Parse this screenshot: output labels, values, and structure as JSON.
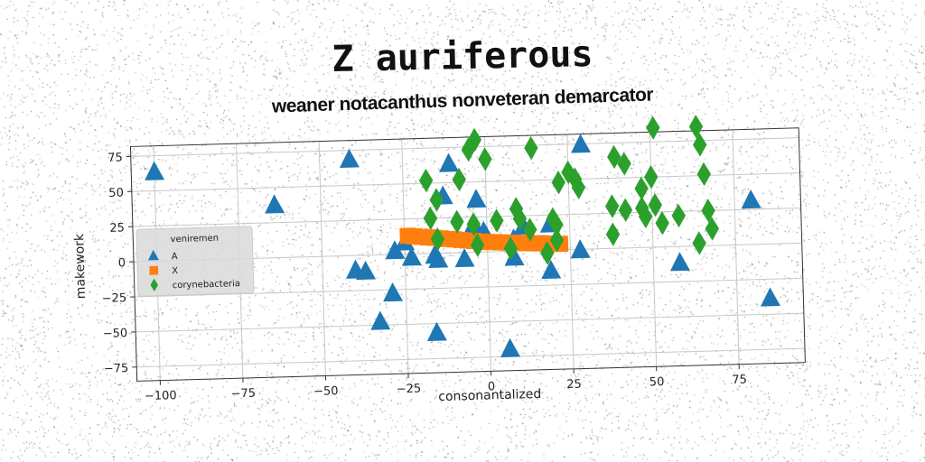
{
  "chart_data": {
    "type": "scatter",
    "title": "Z auriferous",
    "subtitle": "weaner notacanthus nonveteran demarcator",
    "xlabel": "consonantalized",
    "ylabel": "makework",
    "xlim": [
      -107,
      95
    ],
    "ylim": [
      -85,
      82
    ],
    "xticks": [
      -100,
      -75,
      -50,
      -25,
      0,
      25,
      50,
      75
    ],
    "yticks": [
      -75,
      -50,
      -25,
      0,
      25,
      50,
      75
    ],
    "xtick_labels": [
      "−100",
      "−75",
      "−50",
      "−25",
      "0",
      "25",
      "50",
      "75"
    ],
    "ytick_labels": [
      "−75",
      "−50",
      "−25",
      "0",
      "25",
      "50",
      "75"
    ],
    "grid": true,
    "legend": {
      "title": "veniremen",
      "position": "center-left"
    },
    "series": [
      {
        "name": "A",
        "marker": "triangle",
        "color": "#1f77b4",
        "points": [
          [
            -100,
            63
          ],
          [
            -41,
            68
          ],
          [
            -64,
            37
          ],
          [
            -11,
            63
          ],
          [
            -13,
            40
          ],
          [
            -3,
            37
          ],
          [
            -25,
            8
          ],
          [
            -28,
            2
          ],
          [
            -23,
            -3
          ],
          [
            -16,
            -2
          ],
          [
            -15,
            -5
          ],
          [
            -7,
            -5
          ],
          [
            -3,
            12
          ],
          [
            -1,
            14
          ],
          [
            -4,
            19
          ],
          [
            8,
            8
          ],
          [
            11,
            17
          ],
          [
            19,
            18
          ],
          [
            8,
            -5
          ],
          [
            19,
            -15
          ],
          [
            28,
            -1
          ],
          [
            29,
            74
          ],
          [
            -40,
            -11
          ],
          [
            -37,
            -12
          ],
          [
            -29,
            -28
          ],
          [
            -33,
            -48
          ],
          [
            -16,
            -57
          ],
          [
            6,
            -70
          ],
          [
            58,
            -12
          ],
          [
            80,
            31
          ],
          [
            85,
            -39
          ]
        ]
      },
      {
        "name": "X",
        "marker": "square",
        "color": "#ff7f0e",
        "points": [
          [
            -24,
            13
          ],
          [
            -22,
            12.5
          ],
          [
            -20,
            12
          ],
          [
            -18,
            11.5
          ],
          [
            -16,
            11
          ],
          [
            -14,
            10.5
          ],
          [
            -12,
            10
          ],
          [
            -10,
            9.5
          ],
          [
            -8,
            9
          ],
          [
            -6,
            8.5
          ],
          [
            -4,
            8
          ],
          [
            -2,
            7.5
          ],
          [
            0,
            7
          ],
          [
            2,
            6.8
          ],
          [
            4,
            6.5
          ],
          [
            6,
            6.2
          ],
          [
            8,
            6
          ],
          [
            10,
            5.8
          ],
          [
            12,
            5.5
          ],
          [
            14,
            5.2
          ],
          [
            16,
            5
          ],
          [
            18,
            4.8
          ],
          [
            20,
            4.5
          ],
          [
            22,
            4.2
          ]
        ]
      },
      {
        "name": "corynebacteria",
        "marker": "diamond",
        "color": "#2ca02c",
        "points": [
          [
            -3,
            80
          ],
          [
            0,
            66
          ],
          [
            -5,
            73
          ],
          [
            14,
            73
          ],
          [
            -18,
            52
          ],
          [
            -15,
            38
          ],
          [
            -8,
            52
          ],
          [
            -17,
            25
          ],
          [
            -9,
            22
          ],
          [
            -15,
            10
          ],
          [
            -4,
            20
          ],
          [
            3,
            22
          ],
          [
            9,
            30
          ],
          [
            10,
            23
          ],
          [
            13,
            15
          ],
          [
            20,
            22
          ],
          [
            21,
            18
          ],
          [
            21,
            7
          ],
          [
            -3,
            5
          ],
          [
            7,
            2
          ],
          [
            18,
            -2
          ],
          [
            22,
            48
          ],
          [
            25,
            55
          ],
          [
            27,
            50
          ],
          [
            28,
            44
          ],
          [
            39,
            65
          ],
          [
            42,
            60
          ],
          [
            38,
            30
          ],
          [
            42,
            27
          ],
          [
            47,
            28
          ],
          [
            48,
            22
          ],
          [
            51,
            30
          ],
          [
            53,
            17
          ],
          [
            38,
            10
          ],
          [
            47,
            42
          ],
          [
            50,
            50
          ],
          [
            51,
            85
          ],
          [
            58,
            22
          ],
          [
            64,
            85
          ],
          [
            65,
            72
          ],
          [
            66,
            51
          ],
          [
            67,
            25
          ],
          [
            68,
            12
          ],
          [
            64,
            2
          ]
        ]
      }
    ]
  }
}
